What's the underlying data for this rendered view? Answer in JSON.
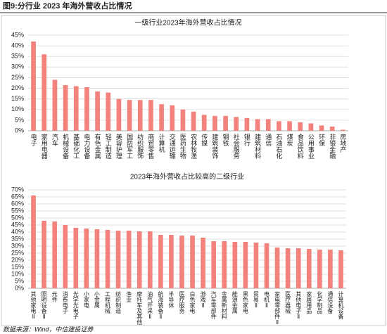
{
  "header": {
    "title": "图9:分行业 2023 年海外营收占比情况"
  },
  "chart_data": [
    {
      "type": "bar",
      "title": "一级行业2023年海外营收占比情况",
      "color": "#f4827c",
      "grid": true,
      "categories": [
        "电子",
        "家用电器",
        "汽车",
        "机械设备",
        "基础化工",
        "电力设备",
        "有色金属",
        "轻工制造",
        "美容护理",
        "国防军工",
        "纺织服饰",
        "商贸零售",
        "计算机",
        "交通运输",
        "医药生物",
        "农林牧渔",
        "传媒",
        "建筑装饰",
        "钢铁",
        "社会服务",
        "银行",
        "建筑材料",
        "通信",
        "石油石化",
        "煤炭",
        "食品饮料",
        "公用事业",
        "环保",
        "非银金融",
        "房地产"
      ],
      "values": [
        42,
        36,
        24,
        21.5,
        21,
        20.5,
        18.5,
        18,
        15,
        14.5,
        14.5,
        14.5,
        12.5,
        12,
        10,
        9,
        7.5,
        7,
        7,
        6.5,
        6,
        5.5,
        5.5,
        4.5,
        4.5,
        4,
        3.5,
        2.5,
        2,
        0.5
      ],
      "ylim": [
        0,
        45
      ],
      "yticks": [
        {
          "value": 0,
          "label": "0%"
        },
        {
          "value": 5,
          "label": "5%"
        },
        {
          "value": 10,
          "label": "10%"
        },
        {
          "value": 15,
          "label": "15%"
        },
        {
          "value": 20,
          "label": "20%"
        },
        {
          "value": 25,
          "label": "25%"
        },
        {
          "value": 30,
          "label": "30%"
        },
        {
          "value": 35,
          "label": "35%"
        },
        {
          "value": 40,
          "label": "40%"
        },
        {
          "value": 45,
          "label": "45%"
        }
      ]
    },
    {
      "type": "bar",
      "title": "2023年海外营收占比较高的二级行业",
      "color": "#f4827c",
      "grid": true,
      "categories": [
        "其他家电Ⅱ",
        "照明设备Ⅱ",
        "元件",
        "消费电子",
        "光学光电子",
        "小家电",
        "小金属",
        "工程机械",
        "纺织制造",
        "渔业",
        "摩托车及其他",
        "油气开采Ⅱ",
        "航海装备Ⅱ",
        "半导体",
        "医疗服务",
        "白色家电",
        "游戏Ⅱ",
        "汽车零部件",
        "金属新材料",
        "能源金属",
        "黑色家电",
        "贸易Ⅱ",
        "电机Ⅱ",
        "家电零部件Ⅱ",
        "医疗器械",
        "其他电子Ⅱ",
        "家居用品",
        "化学制品",
        "通信设备",
        "计算机设备"
      ],
      "values": [
        66,
        48,
        47.5,
        45,
        43,
        42.5,
        42,
        41.5,
        41,
        41,
        40.5,
        40.5,
        38,
        38,
        37.5,
        37.5,
        36,
        33.5,
        33.5,
        33,
        33,
        32.5,
        32,
        29,
        28.5,
        28.5,
        28,
        27.5,
        27.5,
        27
      ],
      "ylim": [
        0,
        70
      ],
      "yticks": [
        {
          "value": 0,
          "label": "0%"
        },
        {
          "value": 5,
          "label": "5%"
        },
        {
          "value": 10,
          "label": "10%"
        },
        {
          "value": 15,
          "label": "15%"
        },
        {
          "value": 20,
          "label": "20%"
        },
        {
          "value": 25,
          "label": "25%"
        },
        {
          "value": 30,
          "label": "30%"
        },
        {
          "value": 35,
          "label": "35%"
        },
        {
          "value": 40,
          "label": "40%"
        },
        {
          "value": 45,
          "label": "45%"
        },
        {
          "value": 50,
          "label": "50%"
        },
        {
          "value": 55,
          "label": "55%"
        },
        {
          "value": 60,
          "label": "60%"
        },
        {
          "value": 65,
          "label": "65%"
        },
        {
          "value": 70,
          "label": "70%"
        }
      ]
    }
  ],
  "footer": {
    "source": "数据来源：Wind，中信建投证券"
  }
}
